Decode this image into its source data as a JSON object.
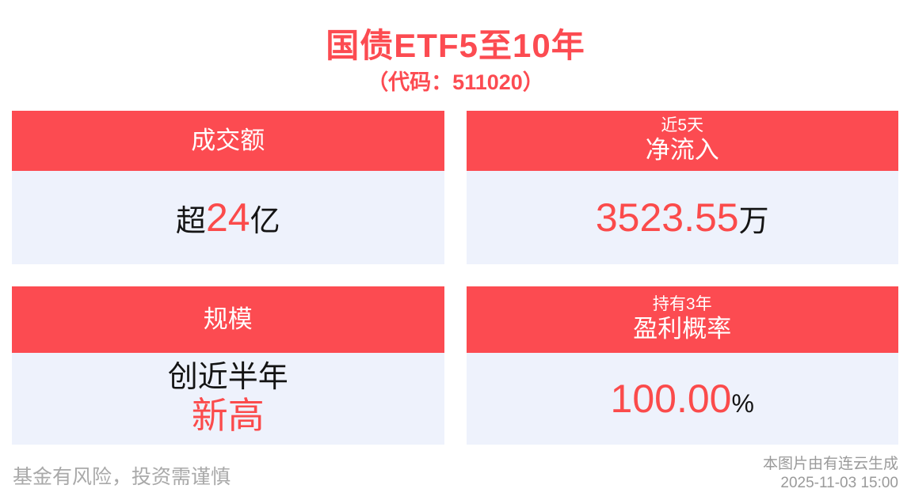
{
  "colors": {
    "accent_red": "#FC4B51",
    "value_red": "#FB4B4B",
    "panel_bg": "#EEF2FC",
    "text_dark": "#141414",
    "muted_gray": "#A9A9A9"
  },
  "header": {
    "title": "国债ETF5至10年",
    "subtitle": "（代码：511020）"
  },
  "cards": [
    {
      "header_main": "成交额",
      "value": {
        "prefix": "超",
        "highlight": "24",
        "suffix": "亿"
      }
    },
    {
      "header_top": "近5天",
      "header_main": "净流入",
      "value": {
        "highlight": "3523.55",
        "suffix": "万"
      }
    },
    {
      "header_main": "规模",
      "value_lines": {
        "line1": "创近半年",
        "line2": "新高"
      }
    },
    {
      "header_top": "持有3年",
      "header_main": "盈利概率",
      "value": {
        "highlight": "100.00",
        "suffix": "%"
      }
    }
  ],
  "footer": {
    "disclaimer": "基金有风险，投资需谨慎",
    "credit": "本图片由有连云生成",
    "timestamp": "2025-11-03 15:00"
  },
  "chart_data": {
    "type": "table",
    "title": "国债ETF5至10年（代码：511020）",
    "rows": [
      {
        "metric": "成交额",
        "value": "超24亿"
      },
      {
        "metric": "近5天净流入",
        "value": "3523.55万"
      },
      {
        "metric": "规模",
        "value": "创近半年新高"
      },
      {
        "metric": "持有3年盈利概率",
        "value": "100.00%"
      }
    ]
  }
}
